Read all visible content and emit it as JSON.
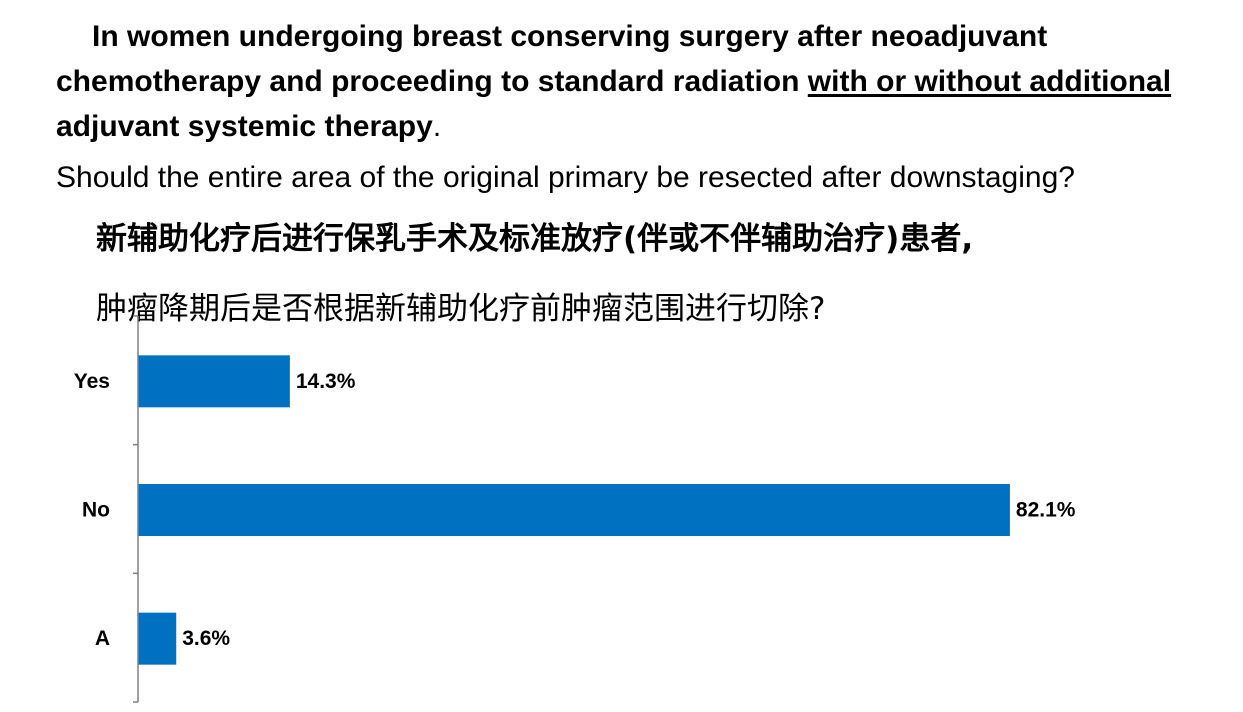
{
  "question": {
    "en_part1": "In women undergoing breast conserving surgery after neoadjuvant chemotherapy and proceeding to standard radiation ",
    "en_underlined": "with or without additional ",
    "en_part2": "adjuvant systemic therapy",
    "en_period": ".",
    "en_sub": "Should the entire area of the original primary be resected after downstaging?",
    "zh_main": "新辅助化疗后进行保乳手术及标准放疗(伴或不伴辅助治疗)患者,",
    "zh_sub": "肿瘤降期后是否根据新辅助化疗前肿瘤范围进行切除?"
  },
  "chart_data": {
    "type": "bar",
    "orientation": "horizontal",
    "categories": [
      "Yes",
      "No",
      "A"
    ],
    "values": [
      14.3,
      82.1,
      3.6
    ],
    "value_labels": [
      "14.3%",
      "82.1%",
      "3.6%"
    ],
    "bar_color": "#0070C0",
    "xlim": [
      0,
      100
    ],
    "title": "",
    "xlabel": "",
    "ylabel": "",
    "grid": false,
    "legend": "none"
  }
}
